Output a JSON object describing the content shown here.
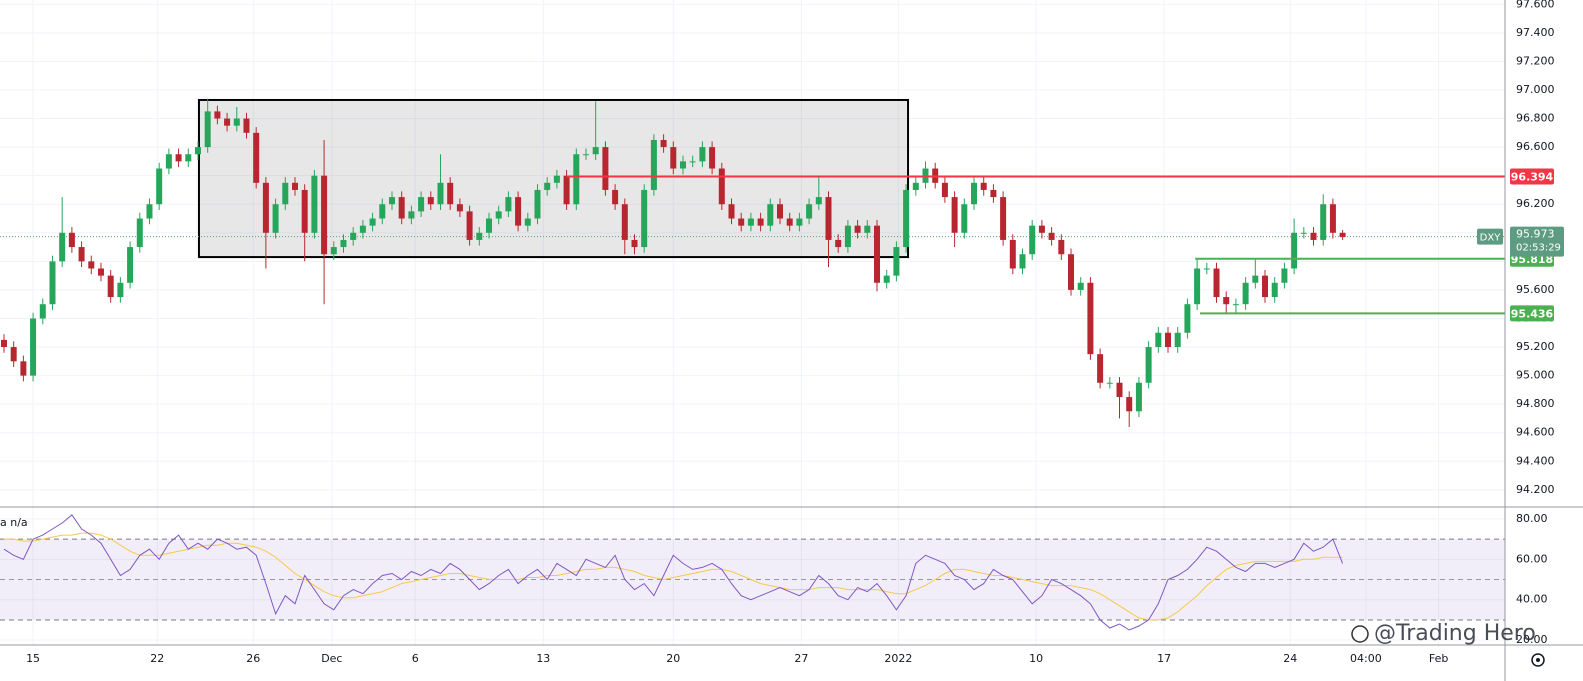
{
  "chart_data": [
    {
      "type": "candlestick",
      "x": [
        0,
        1,
        2,
        3,
        4,
        5,
        6,
        7,
        8,
        9,
        10,
        11,
        12,
        13,
        14,
        15,
        16,
        17,
        18,
        19,
        20,
        21,
        22,
        23,
        24,
        25,
        26,
        27,
        28,
        29,
        30,
        31,
        32,
        33,
        34,
        35,
        36,
        37,
        38,
        39,
        40,
        41,
        42,
        43,
        44,
        45,
        46,
        47,
        48,
        49,
        50,
        51,
        52,
        53,
        54,
        55,
        56,
        57,
        58,
        59,
        60,
        61,
        62,
        63,
        64,
        65,
        66,
        67,
        68,
        69,
        70,
        71,
        72,
        73,
        74,
        75,
        76,
        77,
        78,
        79,
        80,
        81,
        82,
        83,
        84,
        85,
        86,
        87,
        88,
        89,
        90,
        91,
        92,
        93,
        94,
        95,
        96,
        97,
        98,
        99,
        100,
        101,
        102,
        103,
        104,
        105,
        106,
        107,
        108,
        109,
        110,
        111,
        112,
        113,
        114,
        115,
        116,
        117,
        118,
        119,
        120,
        121,
        122,
        123,
        124,
        125,
        126,
        127,
        128,
        129,
        130,
        131,
        132,
        133,
        134,
        135,
        136,
        137,
        138
      ],
      "open": [
        95.25,
        95.2,
        95.1,
        95.0,
        95.4,
        95.5,
        95.8,
        96.0,
        95.9,
        95.8,
        95.75,
        95.7,
        95.55,
        95.65,
        95.9,
        96.1,
        96.2,
        96.45,
        96.55,
        96.5,
        96.55,
        96.6,
        96.85,
        96.8,
        96.75,
        96.8,
        96.7,
        96.35,
        96.0,
        96.2,
        96.35,
        96.3,
        96.0,
        96.4,
        95.85,
        95.9,
        95.95,
        96.0,
        96.05,
        96.1,
        96.2,
        96.25,
        96.1,
        96.15,
        96.25,
        96.2,
        96.35,
        96.2,
        96.15,
        95.95,
        96.0,
        96.1,
        96.15,
        96.25,
        96.05,
        96.1,
        96.3,
        96.35,
        96.4,
        96.2,
        96.55,
        96.55,
        96.6,
        96.3,
        96.2,
        95.95,
        95.9,
        96.3,
        96.65,
        96.6,
        96.45,
        96.5,
        96.5,
        96.6,
        96.45,
        96.2,
        96.1,
        96.05,
        96.1,
        96.05,
        96.2,
        96.1,
        96.05,
        96.1,
        96.2,
        96.25,
        95.95,
        95.9,
        96.05,
        96.0,
        96.05,
        95.65,
        95.7,
        95.9,
        96.3,
        96.35,
        96.45,
        96.35,
        96.25,
        96.0,
        96.2,
        96.35,
        96.3,
        96.25,
        95.95,
        95.75,
        95.85,
        96.05,
        96.0,
        95.95,
        95.85,
        95.6,
        95.65,
        95.15,
        94.95,
        94.95,
        94.85,
        94.75,
        94.95,
        95.2,
        95.3,
        95.2,
        95.3,
        95.5,
        95.75,
        95.75,
        95.55,
        95.5,
        95.5,
        95.65,
        95.7,
        95.55,
        95.65,
        95.75,
        96.0,
        96.0,
        95.95,
        96.2,
        96.0
      ],
      "high": [
        95.29,
        95.24,
        95.14,
        95.44,
        95.54,
        95.84,
        96.25,
        96.04,
        95.94,
        95.84,
        95.79,
        95.74,
        95.69,
        95.94,
        96.14,
        96.24,
        96.49,
        96.59,
        96.59,
        96.59,
        96.64,
        96.94,
        96.89,
        96.84,
        96.88,
        96.84,
        96.74,
        96.39,
        96.24,
        96.39,
        96.39,
        96.34,
        96.44,
        96.65,
        95.94,
        95.99,
        96.04,
        96.09,
        96.14,
        96.24,
        96.29,
        96.29,
        96.19,
        96.29,
        96.29,
        96.55,
        96.39,
        96.24,
        96.19,
        96.04,
        96.14,
        96.19,
        96.29,
        96.29,
        96.14,
        96.34,
        96.39,
        96.44,
        96.44,
        96.59,
        96.59,
        96.92,
        96.64,
        96.34,
        96.24,
        95.99,
        96.34,
        96.69,
        96.69,
        96.64,
        96.54,
        96.54,
        96.64,
        96.64,
        96.49,
        96.24,
        96.14,
        96.14,
        96.14,
        96.24,
        96.24,
        96.14,
        96.14,
        96.24,
        96.39,
        96.29,
        95.99,
        96.09,
        96.09,
        96.09,
        96.09,
        95.74,
        95.94,
        96.34,
        96.39,
        96.5,
        96.49,
        96.39,
        96.29,
        96.24,
        96.39,
        96.39,
        96.34,
        96.29,
        95.99,
        95.89,
        96.09,
        96.09,
        96.04,
        95.99,
        95.89,
        95.69,
        95.69,
        95.19,
        94.99,
        94.99,
        94.89,
        94.99,
        95.24,
        95.34,
        95.34,
        95.34,
        95.54,
        95.82,
        95.79,
        95.79,
        95.59,
        95.54,
        95.69,
        95.82,
        95.74,
        95.69,
        95.79,
        96.1,
        96.04,
        96.04,
        96.27,
        96.24,
        96.02
      ],
      "low": [
        95.16,
        95.06,
        94.96,
        94.96,
        95.36,
        95.46,
        95.76,
        95.86,
        95.76,
        95.71,
        95.66,
        95.51,
        95.51,
        95.61,
        95.86,
        96.06,
        96.16,
        96.41,
        96.46,
        96.46,
        96.51,
        96.56,
        96.76,
        96.71,
        96.71,
        96.66,
        96.31,
        95.75,
        95.96,
        96.16,
        96.26,
        95.8,
        95.96,
        95.5,
        95.81,
        95.86,
        95.91,
        95.96,
        96.01,
        96.06,
        96.16,
        96.06,
        96.06,
        96.11,
        96.16,
        96.16,
        96.16,
        96.11,
        95.91,
        95.91,
        95.96,
        96.06,
        96.11,
        96.01,
        96.01,
        96.06,
        96.26,
        96.31,
        96.16,
        96.16,
        96.51,
        96.51,
        96.26,
        96.16,
        95.85,
        95.85,
        95.86,
        96.26,
        96.56,
        96.41,
        96.41,
        96.46,
        96.46,
        96.41,
        96.16,
        96.06,
        96.01,
        96.01,
        96.01,
        96.01,
        96.06,
        96.01,
        96.01,
        96.06,
        96.16,
        95.76,
        95.86,
        95.86,
        95.96,
        95.96,
        95.59,
        95.61,
        95.66,
        95.86,
        96.26,
        96.31,
        96.31,
        96.21,
        95.9,
        95.96,
        96.16,
        96.26,
        96.21,
        95.91,
        95.71,
        95.71,
        95.81,
        95.96,
        95.91,
        95.81,
        95.56,
        95.56,
        95.11,
        94.91,
        94.91,
        94.7,
        94.64,
        94.71,
        94.91,
        95.16,
        95.16,
        95.16,
        95.26,
        95.46,
        95.71,
        95.51,
        95.43,
        95.43,
        95.46,
        95.61,
        95.51,
        95.51,
        95.61,
        95.71,
        95.96,
        95.91,
        95.91,
        95.96,
        95.95
      ],
      "close": [
        95.2,
        95.1,
        95.0,
        95.4,
        95.5,
        95.8,
        96.0,
        95.9,
        95.8,
        95.75,
        95.7,
        95.55,
        95.65,
        95.9,
        96.1,
        96.2,
        96.45,
        96.55,
        96.5,
        96.55,
        96.6,
        96.85,
        96.8,
        96.75,
        96.8,
        96.7,
        96.35,
        96.0,
        96.2,
        96.35,
        96.3,
        96.0,
        96.4,
        95.85,
        95.9,
        95.95,
        96.0,
        96.05,
        96.1,
        96.2,
        96.25,
        96.1,
        96.15,
        96.25,
        96.2,
        96.35,
        96.2,
        96.15,
        95.95,
        96.0,
        96.1,
        96.15,
        96.25,
        96.05,
        96.1,
        96.3,
        96.35,
        96.4,
        96.2,
        96.55,
        96.55,
        96.6,
        96.3,
        96.2,
        95.95,
        95.9,
        96.3,
        96.65,
        96.6,
        96.45,
        96.5,
        96.5,
        96.6,
        96.45,
        96.2,
        96.1,
        96.05,
        96.1,
        96.05,
        96.2,
        96.1,
        96.05,
        96.1,
        96.2,
        96.25,
        95.95,
        95.9,
        96.05,
        96.0,
        96.05,
        95.65,
        95.7,
        95.9,
        96.3,
        96.35,
        96.45,
        96.35,
        96.25,
        96.0,
        96.2,
        96.35,
        96.3,
        96.25,
        95.95,
        95.75,
        95.85,
        96.05,
        96.0,
        95.95,
        95.85,
        95.6,
        95.65,
        95.15,
        94.95,
        94.95,
        94.85,
        94.75,
        94.95,
        95.2,
        95.3,
        95.2,
        95.3,
        95.5,
        95.75,
        95.75,
        95.55,
        95.5,
        95.5,
        95.65,
        95.7,
        95.55,
        95.65,
        95.75,
        96.0,
        96.0,
        95.95,
        96.2,
        96.0,
        95.97
      ],
      "up_color": "#26a65b",
      "down_color": "#b8272f",
      "xlim": [
        -0.41,
        154.74
      ],
      "xticks": [
        {
          "value": 3,
          "label": "15"
        },
        {
          "value": 15.8,
          "label": "22"
        },
        {
          "value": 25.7,
          "label": "26"
        },
        {
          "value": 33.8,
          "label": "Dec"
        },
        {
          "value": 42.4,
          "label": "6"
        },
        {
          "value": 55.6,
          "label": "13"
        },
        {
          "value": 69,
          "label": "20"
        },
        {
          "value": 82.2,
          "label": "27"
        },
        {
          "value": 92.2,
          "label": "2022"
        },
        {
          "value": 106.4,
          "label": "10"
        },
        {
          "value": 119.6,
          "label": "17"
        },
        {
          "value": 132.6,
          "label": "24"
        },
        {
          "value": 140.4,
          "label": "04:00"
        },
        {
          "value": 147.9,
          "label": "Feb"
        }
      ],
      "ylim": [
        94.08,
        97.63
      ],
      "yticks": [
        {
          "value": 94.2,
          "label": "94.200"
        },
        {
          "value": 94.4,
          "label": "94.400"
        },
        {
          "value": 94.6,
          "label": "94.600"
        },
        {
          "value": 94.8,
          "label": "94.800"
        },
        {
          "value": 95.0,
          "label": "95.000"
        },
        {
          "value": 95.2,
          "label": "95.200"
        },
        {
          "value": 95.4,
          "label": "95.400"
        },
        {
          "value": 95.6,
          "label": "95.600"
        },
        {
          "value": 95.8,
          "label": "95.800"
        },
        {
          "value": 96.0,
          "label": "96.000"
        },
        {
          "value": 96.2,
          "label": "96.200"
        },
        {
          "value": 96.4,
          "label": "96.400"
        },
        {
          "value": 96.6,
          "label": "96.600"
        },
        {
          "value": 96.8,
          "label": "96.800"
        },
        {
          "value": 97.0,
          "label": "97.000"
        },
        {
          "value": 97.2,
          "label": "97.200"
        },
        {
          "value": 97.4,
          "label": "97.400"
        },
        {
          "value": 97.6,
          "label": "97.600"
        }
      ],
      "grid": true,
      "rectangle": {
        "x": [
          20.1,
          93.2
        ],
        "y": [
          95.83,
          96.93
        ]
      },
      "levels": [
        {
          "value": 96.394,
          "color": "#f23645",
          "x_start": 58
        },
        {
          "value": 95.818,
          "color": "#4caf50",
          "x_start": 122.8
        },
        {
          "value": 95.436,
          "color": "#4caf50",
          "x_start": 123.3
        }
      ],
      "last": {
        "value": 95.973,
        "symbol": "DXY",
        "countdown": "02:53:29",
        "color": "#5d9c82"
      },
      "watermark": "@Trading Hero"
    },
    {
      "type": "line",
      "legend_text": "a n/a",
      "series": [
        {
          "color": "#7e57c2",
          "values": [
            65,
            62,
            60,
            70,
            72,
            75,
            78,
            82,
            75,
            72,
            68,
            60,
            52,
            55,
            62,
            65,
            60,
            68,
            72,
            65,
            68,
            65,
            70,
            68,
            65,
            66,
            62,
            48,
            33,
            42,
            38,
            52,
            45,
            38,
            35,
            42,
            45,
            43,
            48,
            52,
            53,
            50,
            54,
            52,
            55,
            53,
            58,
            55,
            50,
            45,
            48,
            52,
            55,
            48,
            52,
            55,
            50,
            58,
            55,
            52,
            60,
            58,
            56,
            62,
            50,
            45,
            48,
            42,
            52,
            62,
            58,
            55,
            56,
            58,
            55,
            48,
            42,
            40,
            42,
            44,
            46,
            44,
            42,
            45,
            52,
            48,
            42,
            40,
            46,
            44,
            48,
            42,
            35,
            42,
            58,
            62,
            60,
            58,
            52,
            50,
            45,
            48,
            55,
            52,
            50,
            44,
            38,
            42,
            50,
            48,
            45,
            42,
            38,
            30,
            26,
            28,
            25,
            27,
            30,
            38,
            50,
            52,
            55,
            60,
            66,
            64,
            60,
            56,
            54,
            58,
            58,
            56,
            58,
            60,
            68,
            64,
            66,
            70,
            58
          ]
        },
        {
          "color": "#f7c948",
          "values": [
            70,
            70,
            69,
            69,
            70,
            71,
            72,
            72,
            73,
            73,
            72,
            70,
            67,
            64,
            62,
            62,
            62,
            63,
            64,
            65,
            66,
            67,
            67,
            68,
            68,
            67,
            66,
            64,
            61,
            57,
            53,
            50,
            47,
            44,
            42,
            41,
            41,
            42,
            43,
            44,
            46,
            48,
            49,
            50,
            51,
            52,
            53,
            53,
            52,
            51,
            50,
            50,
            50,
            50,
            51,
            51,
            52,
            52,
            53,
            54,
            55,
            55,
            56,
            56,
            55,
            54,
            52,
            51,
            50,
            51,
            52,
            53,
            54,
            55,
            55,
            54,
            52,
            50,
            48,
            47,
            46,
            45,
            45,
            45,
            46,
            46,
            46,
            45,
            45,
            45,
            45,
            44,
            43,
            43,
            45,
            47,
            50,
            53,
            55,
            55,
            54,
            53,
            52,
            52,
            51,
            50,
            49,
            48,
            47,
            47,
            47,
            46,
            45,
            43,
            40,
            37,
            34,
            31,
            30,
            30,
            31,
            34,
            38,
            42,
            47,
            51,
            55,
            57,
            58,
            59,
            59,
            59,
            59,
            59,
            60,
            60,
            61,
            61,
            61
          ]
        }
      ],
      "ylim": [
        17.6,
        85.9
      ],
      "yticks": [
        {
          "value": 20,
          "label": "20.00"
        },
        {
          "value": 40,
          "label": "40.00"
        },
        {
          "value": 60,
          "label": "60.00"
        },
        {
          "value": 80,
          "label": "80.00"
        }
      ],
      "band": [
        30,
        70
      ],
      "midline": 50
    }
  ]
}
